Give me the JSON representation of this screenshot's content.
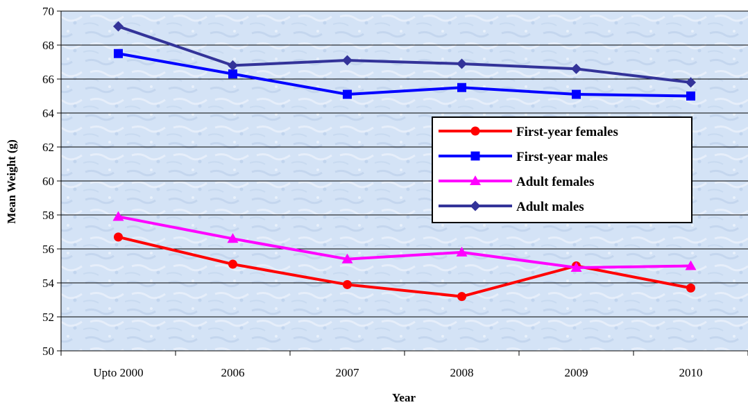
{
  "chart_data": {
    "type": "line",
    "title": "",
    "xlabel": "Year",
    "ylabel": "Mean Weight (g)",
    "categories": [
      "Upto 2000",
      "2006",
      "2007",
      "2008",
      "2009",
      "2010"
    ],
    "ylim": [
      50,
      70
    ],
    "yticks": [
      50,
      52,
      54,
      56,
      58,
      60,
      62,
      64,
      66,
      68,
      70
    ],
    "grid": true,
    "legend_position": "right",
    "series": [
      {
        "name": "First-year females",
        "color": "#ff0000",
        "marker": "circle",
        "values": [
          56.7,
          55.1,
          53.9,
          53.2,
          55.0,
          53.7
        ]
      },
      {
        "name": "First-year males",
        "color": "#0000ff",
        "marker": "square",
        "values": [
          67.5,
          66.3,
          65.1,
          65.5,
          65.1,
          65.0
        ]
      },
      {
        "name": "Adult females",
        "color": "#ff00ff",
        "marker": "triangle",
        "values": [
          57.9,
          56.6,
          55.4,
          55.8,
          54.9,
          55.0
        ]
      },
      {
        "name": "Adult males",
        "color": "#333399",
        "marker": "diamond",
        "values": [
          69.1,
          66.8,
          67.1,
          66.9,
          66.6,
          65.8
        ]
      }
    ],
    "plot_background": "#d6e4f5"
  }
}
